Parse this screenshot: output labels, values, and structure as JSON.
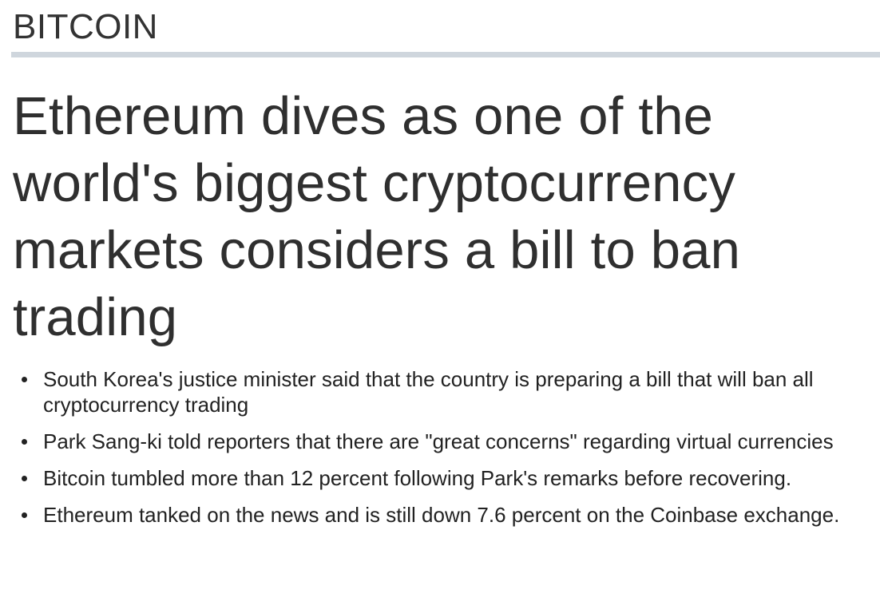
{
  "section": {
    "label": "BITCOIN"
  },
  "article": {
    "headline": "Ethereum dives as one of the world's biggest cryptocurrency markets considers a bill to ban trading",
    "key_points": [
      "South Korea's justice minister said that the country is preparing a bill that will ban all cryptocurrency trading",
      "Park Sang-ki told reporters that there are \"great concerns\" regarding virtual currencies",
      "Bitcoin tumbled more than 12 percent following Park's remarks before recovering.",
      "Ethereum tanked on the news and is still down 7.6 percent on the Coinbase exchange."
    ]
  },
  "colors": {
    "rule": "#cfd6dd",
    "text": "#2b2b2b"
  }
}
